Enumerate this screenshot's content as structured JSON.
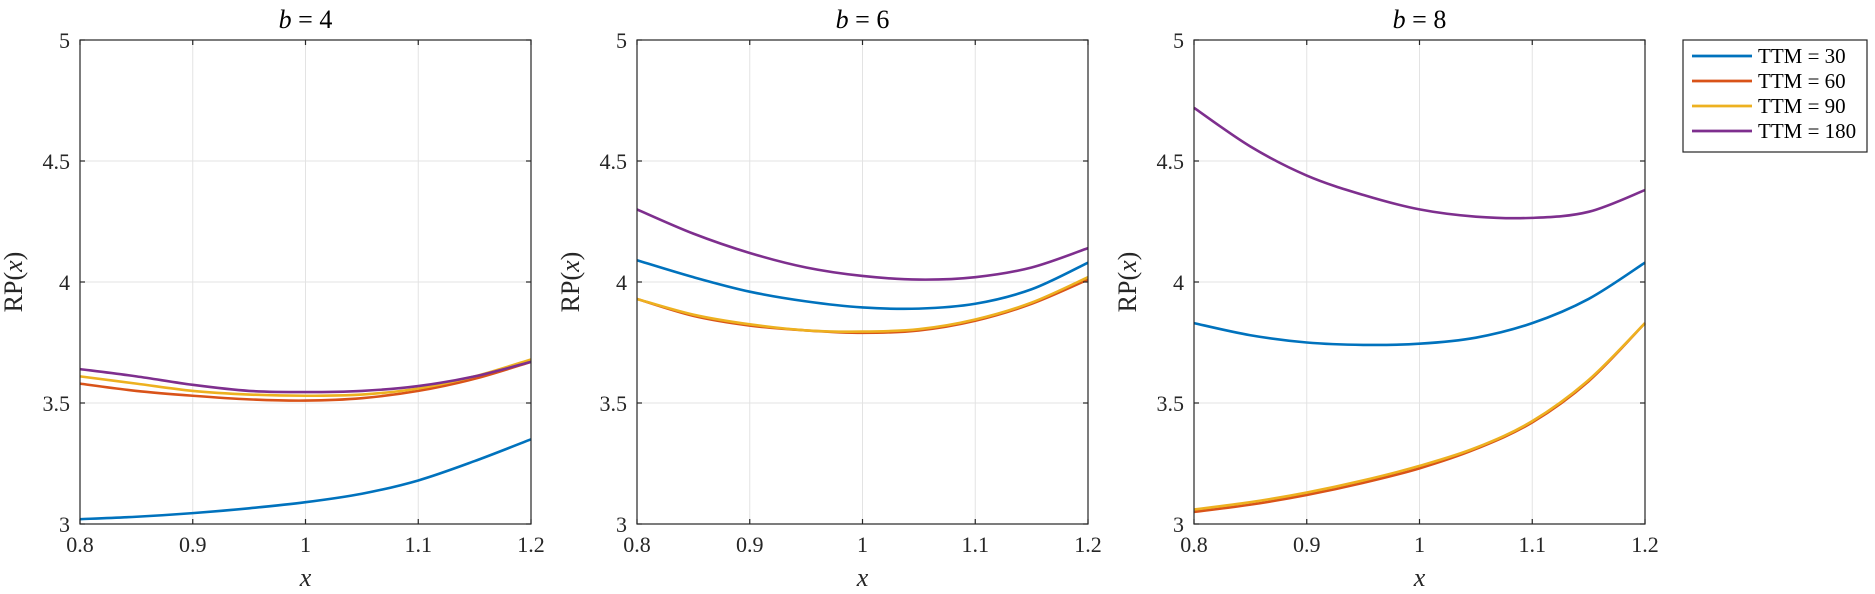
{
  "chart_data": {
    "type": "line",
    "x": [
      0.8,
      0.85,
      0.9,
      0.95,
      1.0,
      1.05,
      1.1,
      1.15,
      1.2
    ],
    "xlim": [
      0.8,
      1.2
    ],
    "ylim": [
      3,
      5
    ],
    "xticks": [
      "0.8",
      "0.9",
      "1",
      "1.1",
      "1.2"
    ],
    "yticks": [
      "3",
      "3.5",
      "4",
      "4.5",
      "5"
    ],
    "xlabel": "x",
    "ylabel_prefix": "RP(",
    "ylabel_var": "x",
    "ylabel_suffix": ")",
    "grid": true,
    "legend": {
      "placement": "outside-top-right",
      "entries": [
        {
          "label": "TTM = 30",
          "color": "#0072BD"
        },
        {
          "label": "TTM = 60",
          "color": "#D95319"
        },
        {
          "label": "TTM = 90",
          "color": "#EDB120"
        },
        {
          "label": "TTM = 180",
          "color": "#7E2F8E"
        }
      ]
    },
    "panels": [
      {
        "title_var": "b",
        "title_rest": " = 4",
        "series": [
          {
            "name": "TTM = 30",
            "color": "#0072BD",
            "values": [
              3.02,
              3.03,
              3.045,
              3.065,
              3.09,
              3.125,
              3.18,
              3.26,
              3.35
            ]
          },
          {
            "name": "TTM = 60",
            "color": "#D95319",
            "values": [
              3.58,
              3.55,
              3.53,
              3.515,
              3.51,
              3.52,
              3.55,
              3.6,
              3.67
            ]
          },
          {
            "name": "TTM = 90",
            "color": "#EDB120",
            "values": [
              3.61,
              3.58,
              3.55,
              3.535,
              3.53,
              3.535,
              3.56,
              3.61,
              3.68
            ]
          },
          {
            "name": "TTM = 180",
            "color": "#7E2F8E",
            "values": [
              3.64,
              3.61,
              3.575,
              3.55,
              3.545,
              3.55,
              3.57,
              3.61,
              3.67
            ]
          }
        ]
      },
      {
        "title_var": "b",
        "title_rest": " = 6",
        "series": [
          {
            "name": "TTM = 30",
            "color": "#0072BD",
            "values": [
              4.09,
              4.02,
              3.96,
              3.92,
              3.895,
              3.89,
              3.91,
              3.97,
              4.08
            ]
          },
          {
            "name": "TTM = 60",
            "color": "#D95319",
            "values": [
              3.93,
              3.86,
              3.82,
              3.8,
              3.79,
              3.8,
              3.84,
              3.91,
              4.01
            ]
          },
          {
            "name": "TTM = 90",
            "color": "#EDB120",
            "values": [
              3.93,
              3.865,
              3.825,
              3.8,
              3.795,
              3.805,
              3.845,
              3.915,
              4.02
            ]
          },
          {
            "name": "TTM = 180",
            "color": "#7E2F8E",
            "values": [
              4.3,
              4.2,
              4.12,
              4.06,
              4.025,
              4.01,
              4.02,
              4.06,
              4.14
            ]
          }
        ]
      },
      {
        "title_var": "b",
        "title_rest": " = 8",
        "series": [
          {
            "name": "TTM = 30",
            "color": "#0072BD",
            "values": [
              3.83,
              3.78,
              3.75,
              3.74,
              3.745,
              3.77,
              3.83,
              3.93,
              4.08
            ]
          },
          {
            "name": "TTM = 60",
            "color": "#D95319",
            "values": [
              3.05,
              3.08,
              3.12,
              3.17,
              3.23,
              3.31,
              3.42,
              3.59,
              3.83
            ]
          },
          {
            "name": "TTM = 90",
            "color": "#EDB120",
            "values": [
              3.06,
              3.09,
              3.13,
              3.18,
              3.24,
              3.315,
              3.425,
              3.595,
              3.83
            ]
          },
          {
            "name": "TTM = 180",
            "color": "#7E2F8E",
            "values": [
              4.72,
              4.56,
              4.44,
              4.36,
              4.3,
              4.27,
              4.265,
              4.29,
              4.38
            ]
          }
        ]
      }
    ]
  }
}
